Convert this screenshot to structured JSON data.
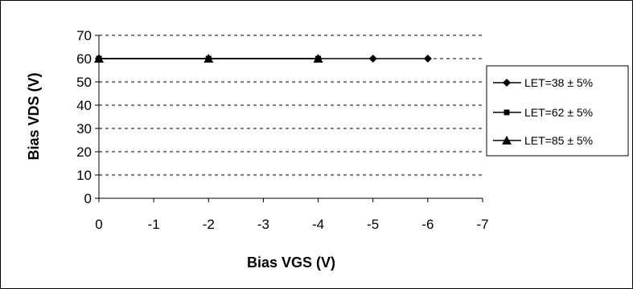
{
  "chart_data": {
    "type": "line",
    "title": "",
    "xlabel": "Bias VGS (V)",
    "ylabel": "Bias VDS (V)",
    "xlim": [
      0,
      -7
    ],
    "ylim": [
      0,
      70
    ],
    "x_ticks": [
      "0",
      "-1",
      "-2",
      "-3",
      "-4",
      "-5",
      "-6",
      "-7"
    ],
    "y_ticks": [
      "0",
      "10",
      "20",
      "30",
      "40",
      "50",
      "60",
      "70"
    ],
    "grid": "horizontal dashed",
    "legend_position": "right",
    "series": [
      {
        "name": "LET=38 ± 5%",
        "marker": "diamond",
        "color": "#000000",
        "x": [
          0,
          -2,
          -4,
          -5,
          -6
        ],
        "y": [
          60,
          60,
          60,
          60,
          60
        ]
      },
      {
        "name": "LET=62 ± 5%",
        "marker": "square",
        "color": "#000000",
        "x": [
          0,
          -2,
          -4
        ],
        "y": [
          60,
          60,
          60
        ]
      },
      {
        "name": "LET=85 ± 5%",
        "marker": "triangle",
        "color": "#000000",
        "x": [
          0,
          -2,
          -4
        ],
        "y": [
          60,
          60,
          60
        ]
      }
    ]
  }
}
